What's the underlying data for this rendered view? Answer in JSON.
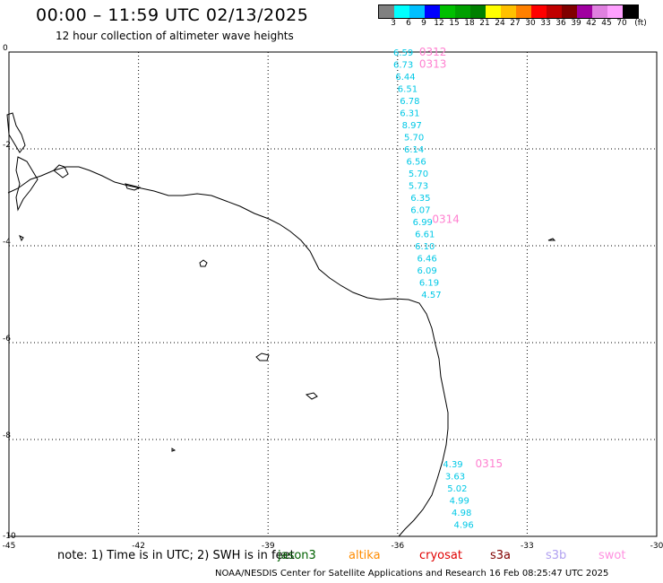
{
  "header": {
    "title": "00:00 – 11:59 UTC 02/13/2025",
    "subtitle": "12 hour collection of altimeter wave heights"
  },
  "legend": {
    "unit": "(ft)",
    "bins": [
      {
        "label": "3",
        "color": "#808080"
      },
      {
        "label": "6",
        "color": "#00ffff"
      },
      {
        "label": "9",
        "color": "#00c0ff"
      },
      {
        "label": "12",
        "color": "#0000ff"
      },
      {
        "label": "15",
        "color": "#00c000"
      },
      {
        "label": "18",
        "color": "#00a000"
      },
      {
        "label": "21",
        "color": "#008000"
      },
      {
        "label": "24",
        "color": "#ffff00"
      },
      {
        "label": "27",
        "color": "#ffc000"
      },
      {
        "label": "30",
        "color": "#ff8000"
      },
      {
        "label": "33",
        "color": "#ff0000"
      },
      {
        "label": "36",
        "color": "#c00000"
      },
      {
        "label": "39",
        "color": "#800000"
      },
      {
        "label": "42",
        "color": "#a000a0"
      },
      {
        "label": "45",
        "color": "#e080e0"
      },
      {
        "label": "70",
        "color": "#ffa0ff"
      },
      {
        "label": "",
        "color": "#000000"
      }
    ]
  },
  "map": {
    "lat_ticks": [
      "0",
      "-2",
      "-4",
      "-6",
      "-8",
      "-10"
    ],
    "lon_ticks": [
      "-45",
      "-42",
      "-39",
      "-36",
      "-33",
      "-30"
    ],
    "date_labels": [
      {
        "text": "0312",
        "lon": -35.5,
        "lat": 0.0
      },
      {
        "text": "0313",
        "lon": -35.5,
        "lat": -0.25
      },
      {
        "text": "0314",
        "lon": -35.2,
        "lat": -3.45
      },
      {
        "text": "0315",
        "lon": -34.2,
        "lat": -8.5
      }
    ],
    "observations": [
      {
        "value": "6.59",
        "lon": -36.1,
        "lat": 0.0
      },
      {
        "value": "6.73",
        "lon": -36.1,
        "lat": -0.25
      },
      {
        "value": "6.44",
        "lon": -36.05,
        "lat": -0.5
      },
      {
        "value": "6.51",
        "lon": -36.0,
        "lat": -0.75
      },
      {
        "value": "6.78",
        "lon": -35.95,
        "lat": -1.0
      },
      {
        "value": "6.31",
        "lon": -35.95,
        "lat": -1.25
      },
      {
        "value": "8.97",
        "lon": -35.9,
        "lat": -1.5
      },
      {
        "value": "5.70",
        "lon": -35.85,
        "lat": -1.75
      },
      {
        "value": "6.14",
        "lon": -35.85,
        "lat": -2.0
      },
      {
        "value": "6.56",
        "lon": -35.8,
        "lat": -2.25
      },
      {
        "value": "5.70",
        "lon": -35.75,
        "lat": -2.5
      },
      {
        "value": "5.73",
        "lon": -35.75,
        "lat": -2.75
      },
      {
        "value": "6.35",
        "lon": -35.7,
        "lat": -3.0
      },
      {
        "value": "6.07",
        "lon": -35.7,
        "lat": -3.25
      },
      {
        "value": "6.99",
        "lon": -35.65,
        "lat": -3.5
      },
      {
        "value": "6.61",
        "lon": -35.6,
        "lat": -3.75
      },
      {
        "value": "6.10",
        "lon": -35.6,
        "lat": -4.0
      },
      {
        "value": "6.46",
        "lon": -35.55,
        "lat": -4.25
      },
      {
        "value": "6.09",
        "lon": -35.55,
        "lat": -4.5
      },
      {
        "value": "6.19",
        "lon": -35.5,
        "lat": -4.75
      },
      {
        "value": "4.57",
        "lon": -35.45,
        "lat": -5.0
      },
      {
        "value": "4.39",
        "lon": -34.95,
        "lat": -8.5
      },
      {
        "value": "3.63",
        "lon": -34.9,
        "lat": -8.75
      },
      {
        "value": "5.02",
        "lon": -34.85,
        "lat": -9.0
      },
      {
        "value": "4.99",
        "lon": -34.8,
        "lat": -9.25
      },
      {
        "value": "4.98",
        "lon": -34.75,
        "lat": -9.5
      },
      {
        "value": "4.96",
        "lon": -34.7,
        "lat": -9.75
      }
    ]
  },
  "footer": {
    "note": "note:  1) Time is in UTC;  2) SWH is in feet",
    "satellites": [
      {
        "name": "jason3",
        "color": "#006000"
      },
      {
        "name": "altika",
        "color": "#ff8c00"
      },
      {
        "name": "cryosat",
        "color": "#e00000"
      },
      {
        "name": "s3a",
        "color": "#800000"
      },
      {
        "name": "s3b",
        "color": "#b0a0f0"
      },
      {
        "name": "swot",
        "color": "#ff90e0"
      }
    ],
    "credit": "NOAA/NESDIS Center for Satellite Applications and Research     16 Feb 08:25:47 UTC 2025"
  }
}
